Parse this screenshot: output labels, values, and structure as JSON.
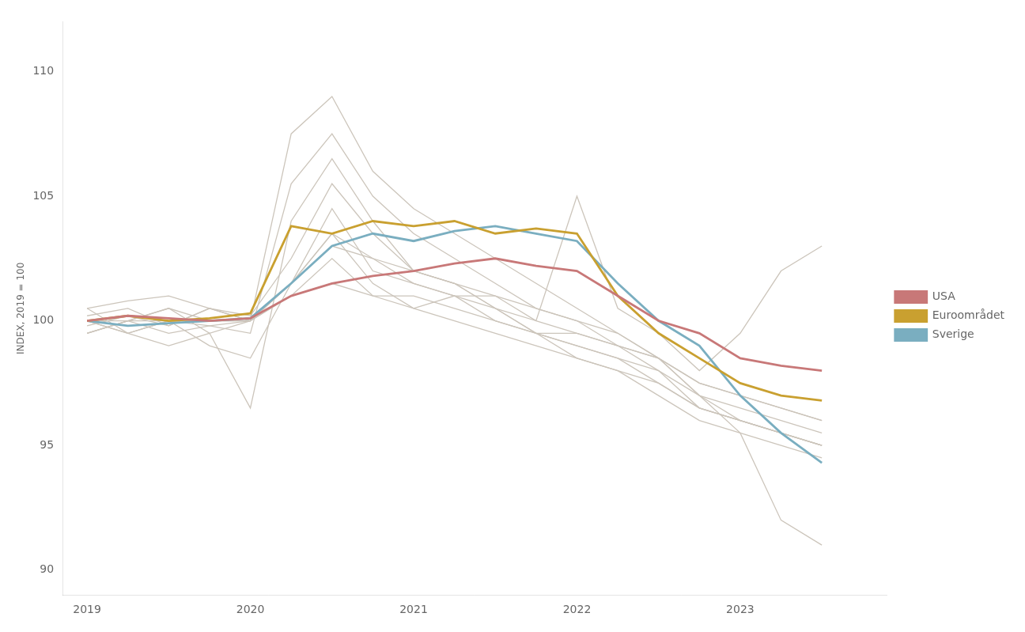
{
  "chart_data": {
    "type": "line",
    "ylabel": "INDEX, 2019 = 100",
    "x": [
      2019.0,
      2019.25,
      2019.5,
      2019.75,
      2020.0,
      2020.25,
      2020.5,
      2020.75,
      2021.0,
      2021.25,
      2021.5,
      2021.75,
      2022.0,
      2022.25,
      2022.5,
      2022.75,
      2023.0,
      2023.25,
      2023.5
    ],
    "xlim": [
      2018.85,
      2023.9
    ],
    "xticks": [
      2019,
      2020,
      2021,
      2022,
      2023
    ],
    "ylim": [
      89,
      112
    ],
    "yticks": [
      90,
      95,
      100,
      105,
      110
    ],
    "grid": false,
    "legend": "right",
    "series": [
      {
        "color": "#ccc5bb",
        "values": [
          100.5,
          100.8,
          101.0,
          100.5,
          100.0,
          107.5,
          109.0,
          106.0,
          104.5,
          103.5,
          102.5,
          101.5,
          100.5,
          99.5,
          98.5,
          97.5,
          97.0,
          96.5,
          96.0
        ]
      },
      {
        "color": "#ccc5bb",
        "values": [
          99.5,
          100.0,
          99.5,
          99.8,
          99.5,
          105.5,
          107.5,
          105.0,
          103.5,
          102.5,
          101.5,
          100.5,
          100.0,
          99.0,
          98.0,
          96.5,
          96.0,
          95.5,
          95.0
        ]
      },
      {
        "color": "#ccc5bb",
        "values": [
          100.0,
          99.5,
          99.0,
          99.5,
          96.5,
          104.0,
          106.5,
          104.0,
          102.0,
          101.5,
          100.5,
          99.5,
          98.5,
          98.0,
          97.0,
          96.0,
          95.5,
          95.0,
          94.5
        ]
      },
      {
        "color": "#ccc5bb",
        "values": [
          100.2,
          100.5,
          99.8,
          100.5,
          100.2,
          102.5,
          105.5,
          103.5,
          102.0,
          101.5,
          100.5,
          99.5,
          99.0,
          98.5,
          97.5,
          96.5,
          96.0,
          95.5,
          95.0
        ]
      },
      {
        "color": "#ccc5bb",
        "values": [
          99.5,
          100.0,
          100.5,
          99.5,
          100.0,
          101.5,
          104.5,
          102.0,
          101.5,
          101.0,
          100.5,
          100.0,
          105.0,
          100.5,
          99.5,
          98.0,
          99.5,
          102.0,
          103.0
        ]
      },
      {
        "color": "#ccc5bb",
        "values": [
          100.0,
          99.5,
          100.0,
          99.0,
          98.5,
          101.5,
          103.5,
          101.5,
          100.5,
          100.0,
          99.5,
          99.0,
          98.5,
          98.0,
          97.5,
          96.5,
          96.0,
          95.5,
          95.0
        ]
      },
      {
        "color": "#ccc5bb",
        "values": [
          100.0,
          100.0,
          100.0,
          99.8,
          100.0,
          101.0,
          102.5,
          101.0,
          100.5,
          101.0,
          100.0,
          99.5,
          99.0,
          98.5,
          98.0,
          97.0,
          96.5,
          96.0,
          95.5
        ]
      },
      {
        "color": "#ccc5bb",
        "values": [
          100.5,
          99.5,
          100.0,
          100.0,
          100.0,
          101.5,
          103.0,
          102.5,
          101.5,
          101.0,
          101.0,
          100.0,
          99.5,
          99.0,
          98.5,
          97.5,
          97.0,
          96.5,
          96.0
        ]
      },
      {
        "color": "#ccc5bb",
        "values": [
          99.8,
          100.2,
          99.8,
          100.5,
          100.0,
          101.0,
          101.5,
          101.0,
          101.0,
          100.5,
          100.0,
          99.5,
          99.5,
          99.0,
          98.5,
          97.0,
          95.5,
          92.0,
          91.0
        ]
      },
      {
        "color": "#ccc5bb",
        "values": [
          99.5,
          100.0,
          100.5,
          100.0,
          100.0,
          101.5,
          103.5,
          102.5,
          102.0,
          101.5,
          101.0,
          100.5,
          100.0,
          99.5,
          98.5,
          97.0,
          96.0,
          95.5,
          95.0
        ]
      },
      {
        "name": "USA",
        "color": "#c87878",
        "values": [
          100.0,
          100.2,
          100.1,
          100.0,
          100.1,
          101.0,
          101.5,
          101.8,
          102.0,
          102.3,
          102.5,
          102.2,
          102.0,
          101.0,
          100.0,
          99.5,
          98.5,
          98.2,
          98.0
        ]
      },
      {
        "name": "Euroområdet",
        "color": "#c9a030",
        "values": [
          100.0,
          100.2,
          100.0,
          100.1,
          100.3,
          103.8,
          103.5,
          104.0,
          103.8,
          104.0,
          103.5,
          103.7,
          103.5,
          101.0,
          99.5,
          98.5,
          97.5,
          97.0,
          96.8
        ]
      },
      {
        "name": "Sverige",
        "color": "#7aaec0",
        "values": [
          100.0,
          99.8,
          99.9,
          100.0,
          100.1,
          101.5,
          103.0,
          103.5,
          103.2,
          103.6,
          103.8,
          103.5,
          103.2,
          101.5,
          100.0,
          99.0,
          97.0,
          95.5,
          94.3
        ]
      }
    ]
  }
}
